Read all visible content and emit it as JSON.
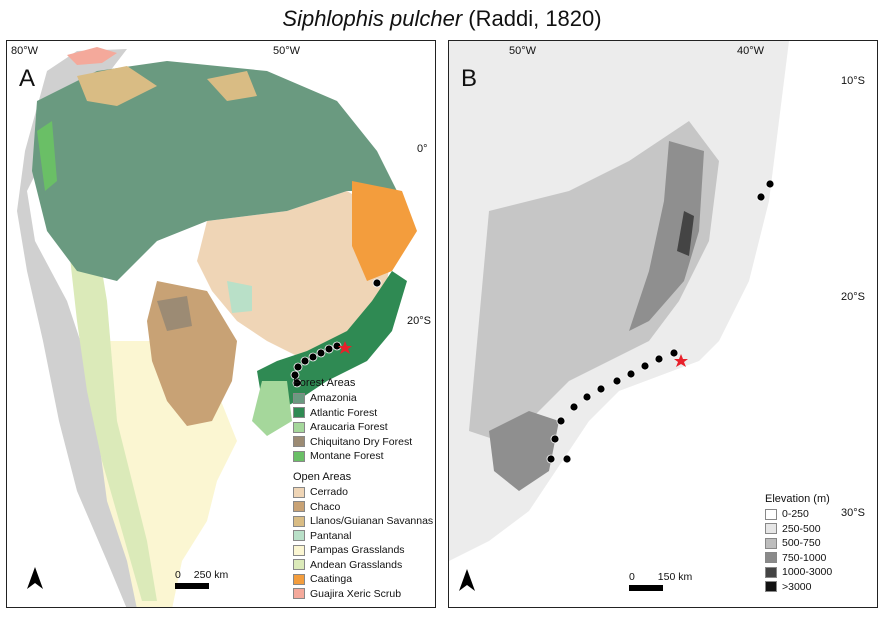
{
  "title": {
    "species": "Siphlophis pulcher",
    "author": " (Raddi, 1820)"
  },
  "panel_a": {
    "label": "A",
    "ticks_top": [
      "80°W",
      "50°W"
    ],
    "ticks_right": [
      "0°",
      "20°S"
    ],
    "legend": {
      "forest_title": "Forest Areas",
      "forest": [
        {
          "label": "Amazonia",
          "color": "#6a9a80"
        },
        {
          "label": "Atlantic Forest",
          "color": "#2f8a53"
        },
        {
          "label": "Araucaria Forest",
          "color": "#a5d79b"
        },
        {
          "label": "Chiquitano Dry Forest",
          "color": "#9c8b74"
        },
        {
          "label": "Montane Forest",
          "color": "#6abf66"
        }
      ],
      "open_title": "Open Areas",
      "open": [
        {
          "label": "Cerrado",
          "color": "#efd5b6"
        },
        {
          "label": "Chaco",
          "color": "#c8a275"
        },
        {
          "label": "Llanos/Guianan Savannas",
          "color": "#d9bc84"
        },
        {
          "label": "Pantanal",
          "color": "#b9e0c8"
        },
        {
          "label": "Pampas Grasslands",
          "color": "#fbf6d2"
        },
        {
          "label": "Andean Grasslands",
          "color": "#dbeab9"
        },
        {
          "label": "Caatinga",
          "color": "#f39d3d"
        },
        {
          "label": "Guajira Xeric Scrub",
          "color": "#f4a99b"
        }
      ]
    },
    "scale": {
      "zero": "0",
      "label": "250 km"
    }
  },
  "panel_b": {
    "label": "B",
    "ticks_top": [
      "50°W",
      "40°W"
    ],
    "ticks_right": [
      "10°S",
      "20°S",
      "30°S"
    ],
    "legend": {
      "title": "Elevation (m)",
      "items": [
        {
          "label": "0-250",
          "color": "#ffffff"
        },
        {
          "label": "250-500",
          "color": "#e6e6e6"
        },
        {
          "label": "500-750",
          "color": "#bdbdbd"
        },
        {
          "label": "750-1000",
          "color": "#8a8a8a"
        },
        {
          "label": "1000-3000",
          "color": "#444444"
        },
        {
          "label": ">3000",
          "color": "#111111"
        }
      ]
    },
    "scale": {
      "zero": "0",
      "label": "150 km"
    }
  }
}
